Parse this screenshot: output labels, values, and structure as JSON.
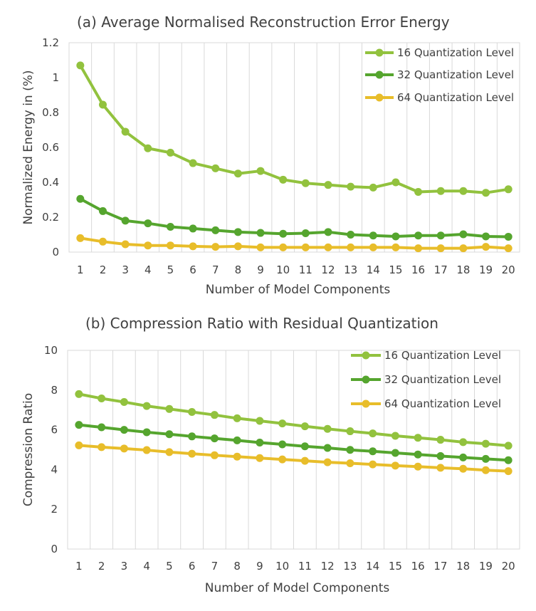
{
  "chart_data": [
    {
      "type": "line",
      "title": "(a) Average Normalised Reconstruction Error Energy",
      "xlabel": "Number of Model Components",
      "ylabel": "Normalized Energy in (%)",
      "x": [
        1,
        2,
        3,
        4,
        5,
        6,
        7,
        8,
        9,
        10,
        11,
        12,
        13,
        14,
        15,
        16,
        17,
        18,
        19,
        20
      ],
      "ylim": [
        0,
        1.2
      ],
      "yticks": [
        "0",
        "0.2",
        "0.4",
        "0.6",
        "0.8",
        "1",
        "1.2"
      ],
      "ytick_values": [
        0,
        0.2,
        0.4,
        0.6,
        0.8,
        1,
        1.2
      ],
      "grid": "vertical",
      "legend_position": "top-right",
      "series": [
        {
          "name": "16  Quantization Level",
          "color": "#92c23e",
          "values": [
            1.07,
            0.845,
            0.69,
            0.595,
            0.57,
            0.51,
            0.48,
            0.45,
            0.465,
            0.415,
            0.395,
            0.385,
            0.375,
            0.37,
            0.4,
            0.345,
            0.35,
            0.35,
            0.34,
            0.36
          ]
        },
        {
          "name": "32 Quantization Level",
          "color": "#55a52e",
          "values": [
            0.305,
            0.235,
            0.18,
            0.165,
            0.145,
            0.135,
            0.125,
            0.115,
            0.11,
            0.105,
            0.108,
            0.115,
            0.1,
            0.095,
            0.09,
            0.095,
            0.095,
            0.102,
            0.09,
            0.088
          ]
        },
        {
          "name": "64  Quantization Level",
          "color": "#e8bd2a",
          "values": [
            0.08,
            0.06,
            0.045,
            0.038,
            0.038,
            0.033,
            0.03,
            0.033,
            0.027,
            0.027,
            0.027,
            0.027,
            0.027,
            0.027,
            0.027,
            0.022,
            0.022,
            0.022,
            0.03,
            0.022
          ]
        }
      ]
    },
    {
      "type": "line",
      "title": "(b) Compression Ratio with Residual Quantization",
      "xlabel": "Number of Model Components",
      "ylabel": "Compression Ratio",
      "x": [
        1,
        2,
        3,
        4,
        5,
        6,
        7,
        8,
        9,
        10,
        11,
        12,
        13,
        14,
        15,
        16,
        17,
        18,
        19,
        20
      ],
      "ylim": [
        0,
        10
      ],
      "yticks": [
        "0",
        "2",
        "4",
        "6",
        "8",
        "10"
      ],
      "ytick_values": [
        0,
        2,
        4,
        6,
        8,
        10
      ],
      "grid": "vertical",
      "legend_position": "top-right",
      "series": [
        {
          "name": "16  Quantization Level",
          "color": "#92c23e",
          "values": [
            7.8,
            7.58,
            7.4,
            7.2,
            7.05,
            6.9,
            6.75,
            6.58,
            6.45,
            6.32,
            6.18,
            6.05,
            5.93,
            5.82,
            5.7,
            5.6,
            5.5,
            5.38,
            5.3,
            5.2
          ]
        },
        {
          "name": "32 Quantization Level",
          "color": "#55a52e",
          "values": [
            6.25,
            6.13,
            6.0,
            5.88,
            5.78,
            5.67,
            5.57,
            5.47,
            5.36,
            5.27,
            5.17,
            5.09,
            4.99,
            4.92,
            4.84,
            4.76,
            4.68,
            4.61,
            4.54,
            4.47
          ]
        },
        {
          "name": "64  Quantization Level",
          "color": "#e8bd2a",
          "values": [
            5.22,
            5.13,
            5.06,
            4.98,
            4.88,
            4.8,
            4.72,
            4.65,
            4.58,
            4.51,
            4.44,
            4.37,
            4.32,
            4.26,
            4.2,
            4.15,
            4.09,
            4.04,
            3.97,
            3.92
          ]
        }
      ]
    }
  ]
}
